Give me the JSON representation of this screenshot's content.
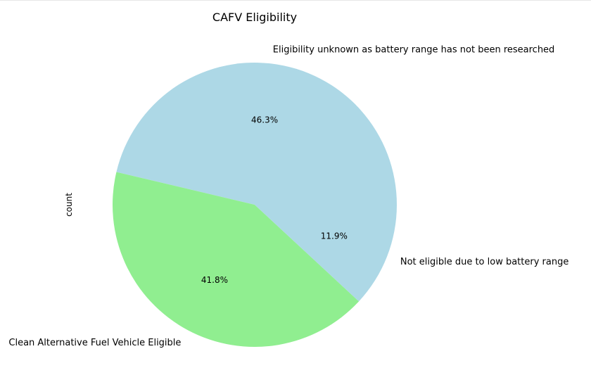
{
  "chart_data": {
    "type": "pie",
    "title": "CAFV Eligibility",
    "ylabel": "count",
    "slices": [
      {
        "label": "Eligibility unknown as battery range has not been researched",
        "value": 46.3,
        "pct_label": "46.3%",
        "color": "#add8e6"
      },
      {
        "label": "Clean Alternative Fuel Vehicle Eligible",
        "value": 41.8,
        "pct_label": "41.8%",
        "color": "#90ee90"
      },
      {
        "label": "Not eligible due to low battery range",
        "value": 11.9,
        "pct_label": "11.9%",
        "color": "#add8e6"
      }
    ]
  }
}
